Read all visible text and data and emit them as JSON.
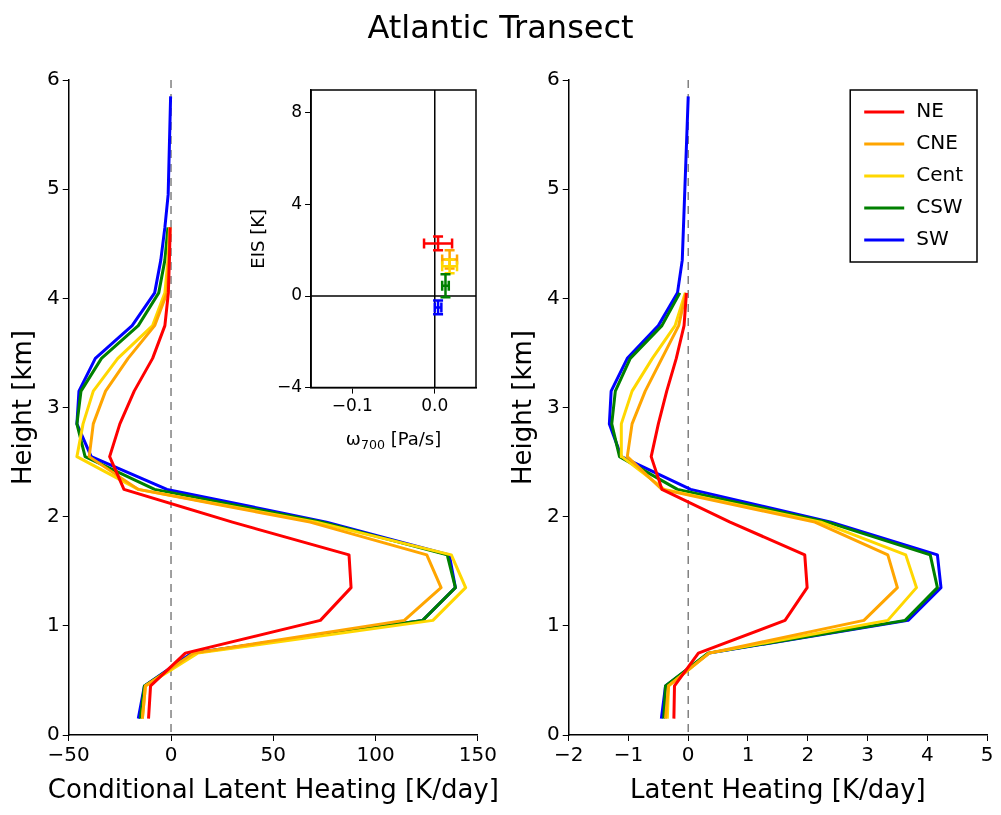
{
  "chart_data": [
    {
      "type": "line",
      "title": "Atlantic Transect",
      "xlabel": "Conditional Latent Heating [K/day]",
      "ylabel": "Height [km]",
      "xlim": [
        -50,
        150
      ],
      "xticks": [
        {
          "value": -50,
          "label": "−50"
        },
        0,
        50,
        100,
        150
      ],
      "ylim": [
        0,
        6
      ],
      "yticks": [
        0,
        1,
        2,
        3,
        4,
        5,
        6
      ],
      "ref_lines": [
        {
          "axis": "x",
          "value": 0,
          "color": "#808080",
          "line_style": "dashed"
        }
      ],
      "series": [
        {
          "color": "#ff0000",
          "x": [
            -11,
            -10,
            7,
            73,
            88,
            87,
            30,
            -23,
            -30,
            -25,
            -18,
            -9,
            -3,
            -1.3,
            -0.8,
            -0.4
          ],
          "values": [
            0.15,
            0.45,
            0.75,
            1.05,
            1.35,
            1.65,
            1.95,
            2.25,
            2.55,
            2.85,
            3.15,
            3.45,
            3.75,
            4.05,
            4.35,
            4.65
          ]
        },
        {
          "color": "#ffa500",
          "x": [
            -14,
            -12.5,
            11,
            114,
            132,
            125,
            68,
            -16,
            -40,
            -38,
            -32,
            -21,
            -8,
            -2,
            -1,
            -0.5
          ],
          "values": [
            0.15,
            0.45,
            0.75,
            1.05,
            1.35,
            1.65,
            1.95,
            2.25,
            2.55,
            2.85,
            3.15,
            3.45,
            3.75,
            4.05,
            4.35,
            4.65
          ]
        },
        {
          "color": "#ffd700",
          "x": [
            -14,
            -12.5,
            13,
            128,
            144,
            137,
            71,
            -16,
            -46,
            -43,
            -38,
            -26,
            -9,
            -3,
            -1.5,
            -0.7
          ],
          "values": [
            0.15,
            0.45,
            0.75,
            1.05,
            1.35,
            1.65,
            1.95,
            2.25,
            2.55,
            2.85,
            3.15,
            3.45,
            3.75,
            4.05,
            4.35,
            4.65
          ]
        },
        {
          "color": "#008000",
          "x": [
            -15,
            -13,
            11,
            123,
            139,
            135,
            74,
            -8,
            -42,
            -46,
            -44,
            -34,
            -16,
            -6,
            -3,
            -1.5
          ],
          "values": [
            0.15,
            0.45,
            0.75,
            1.05,
            1.35,
            1.65,
            1.95,
            2.25,
            2.55,
            2.85,
            3.15,
            3.45,
            3.75,
            4.05,
            4.35,
            4.65
          ]
        },
        {
          "color": "#0000ff",
          "x": [
            -16,
            -13,
            10,
            123,
            139,
            136,
            76,
            -2,
            -39,
            -46,
            -45,
            -37,
            -19,
            -8,
            -5,
            -3,
            -1.4,
            -0.2
          ],
          "values": [
            0.15,
            0.45,
            0.75,
            1.05,
            1.35,
            1.65,
            1.95,
            2.25,
            2.55,
            2.85,
            3.15,
            3.45,
            3.75,
            4.05,
            4.35,
            4.65,
            4.95,
            5.85
          ]
        }
      ]
    },
    {
      "type": "scatter",
      "xlabel": "ω$_{700}$ [Pa/s]",
      "ylabel": "EIS [K]",
      "xlim": [
        -0.15,
        0.05
      ],
      "xticks": [
        {
          "value": -0.1,
          "label": "−0.1"
        },
        {
          "value": 0,
          "label": "0.0"
        }
      ],
      "ylim": [
        -4,
        9
      ],
      "yticks": [
        {
          "value": -4,
          "label": "−4"
        },
        0,
        4,
        8
      ],
      "ref_lines": [
        {
          "axis": "x",
          "value": 0,
          "color": "#000000"
        },
        {
          "axis": "y",
          "value": 0,
          "color": "#000000"
        }
      ],
      "series": [
        {
          "x": [
            0.004,
            0.018,
            0.018,
            0.013,
            0.004
          ],
          "values": [
            2.3,
            1.6,
            1.3,
            0.45,
            -0.5
          ],
          "colors": [
            "#ff0000",
            "#ffa500",
            "#ffd700",
            "#008000",
            "#0000ff"
          ],
          "errors": [
            0.3,
            0.4,
            0.3,
            0.5,
            0.3
          ],
          "xerrors": [
            0.017,
            0.009,
            0.009,
            0.004,
            0.004
          ]
        }
      ]
    },
    {
      "type": "line",
      "xlabel": "Latent Heating [K/day]",
      "ylabel": "Height [km]",
      "xlim": [
        -2,
        5
      ],
      "xticks": [
        {
          "value": -2,
          "label": "−2"
        },
        {
          "value": -1,
          "label": "−1"
        },
        0,
        1,
        2,
        3,
        4,
        5
      ],
      "ylim": [
        0,
        6
      ],
      "yticks": [
        0,
        1,
        2,
        3,
        4,
        5,
        6
      ],
      "legend": "top right",
      "ref_lines": [
        {
          "axis": "x",
          "value": 0,
          "color": "#808080",
          "line_style": "dashed"
        }
      ],
      "series": [
        {
          "name": "NE",
          "color": "#ff0000",
          "x": [
            -0.24,
            -0.23,
            0.17,
            1.62,
            1.99,
            1.95,
            0.7,
            -0.44,
            -0.62,
            -0.5,
            -0.36,
            -0.2,
            -0.07,
            -0.03
          ],
          "values": [
            0.15,
            0.45,
            0.75,
            1.05,
            1.35,
            1.65,
            1.95,
            2.25,
            2.55,
            2.85,
            3.15,
            3.45,
            3.75,
            4.05
          ]
        },
        {
          "name": "CNE",
          "color": "#ffa500",
          "x": [
            -0.38,
            -0.33,
            0.35,
            2.94,
            3.5,
            3.34,
            2.12,
            -0.44,
            -1.02,
            -0.94,
            -0.72,
            -0.44,
            -0.16,
            -0.04
          ],
          "values": [
            0.15,
            0.45,
            0.75,
            1.05,
            1.35,
            1.65,
            1.95,
            2.25,
            2.55,
            2.85,
            3.15,
            3.45,
            3.75,
            4.05
          ]
        },
        {
          "name": "Cent",
          "color": "#ffd700",
          "x": [
            -0.35,
            -0.33,
            0.35,
            3.34,
            3.82,
            3.64,
            2.22,
            -0.4,
            -1.11,
            -1.12,
            -0.94,
            -0.6,
            -0.22,
            -0.05
          ],
          "values": [
            0.15,
            0.45,
            0.75,
            1.05,
            1.35,
            1.65,
            1.95,
            2.25,
            2.55,
            2.85,
            3.15,
            3.45,
            3.75,
            4.05
          ]
        },
        {
          "name": "CSW",
          "color": "#008000",
          "x": [
            -0.41,
            -0.38,
            0.33,
            3.63,
            4.17,
            4.05,
            2.33,
            -0.18,
            -1.15,
            -1.28,
            -1.22,
            -0.97,
            -0.44,
            -0.14
          ],
          "values": [
            0.15,
            0.45,
            0.75,
            1.05,
            1.35,
            1.65,
            1.95,
            2.25,
            2.55,
            2.85,
            3.15,
            3.45,
            3.75,
            4.05
          ]
        },
        {
          "name": "SW",
          "color": "#0000ff",
          "x": [
            -0.45,
            -0.38,
            0.35,
            3.68,
            4.23,
            4.17,
            2.39,
            0.04,
            -1.12,
            -1.32,
            -1.29,
            -1.02,
            -0.5,
            -0.18,
            -0.1,
            0
          ],
          "values": [
            0.15,
            0.45,
            0.75,
            1.05,
            1.35,
            1.65,
            1.95,
            2.25,
            2.55,
            2.85,
            3.15,
            3.45,
            3.75,
            4.05,
            4.35,
            5.85
          ]
        }
      ]
    }
  ]
}
